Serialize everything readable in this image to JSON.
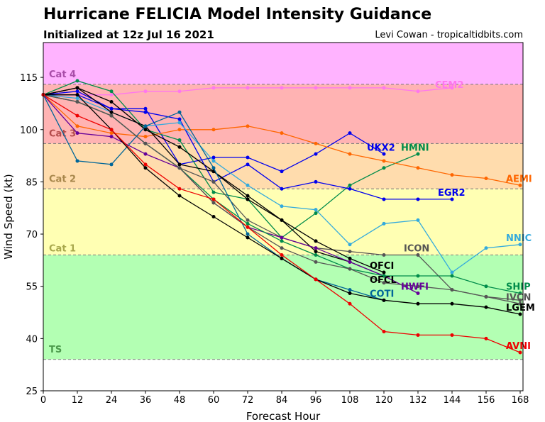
{
  "header": {
    "title": "Hurricane FELICIA Model Intensity Guidance",
    "subtitle": "Initialized at 12z Jul 16 2021",
    "credit": "Levi Cowan - tropicaltidbits.com"
  },
  "chart_data": {
    "type": "line",
    "xlabel": "Forecast Hour",
    "ylabel": "Wind Speed (kt)",
    "xlim": [
      0,
      169
    ],
    "ylim": [
      25,
      125
    ],
    "xticks": [
      0,
      12,
      24,
      36,
      48,
      60,
      72,
      84,
      96,
      108,
      120,
      132,
      144,
      156,
      168
    ],
    "yticks": [
      25,
      40,
      55,
      70,
      85,
      100,
      115
    ],
    "bands": [
      {
        "name": "",
        "from": 25,
        "to": 34,
        "color": "#ffffff"
      },
      {
        "name": "TS",
        "from": 34,
        "to": 64,
        "color": "#b3ffb3",
        "label_color": "#4c9a4c",
        "label_y": 37
      },
      {
        "name": "Cat 1",
        "from": 64,
        "to": 83,
        "color": "#ffffb3",
        "label_color": "#a8a84c",
        "label_y": 66
      },
      {
        "name": "Cat 2",
        "from": 83,
        "to": 96,
        "color": "#ffdcad",
        "label_color": "#a8874c",
        "label_y": 86
      },
      {
        "name": "Cat 3",
        "from": 96,
        "to": 113,
        "color": "#ffb3b3",
        "label_color": "#b34c4c",
        "label_y": 99
      },
      {
        "name": "Cat 4",
        "from": 113,
        "to": 125,
        "color": "#ffb3ff",
        "label_color": "#a84ca8",
        "label_y": 116
      }
    ],
    "series": [
      {
        "name": "CEM2",
        "color": "#ff77ee",
        "x": [
          0,
          12,
          24,
          36,
          48,
          60,
          72,
          84,
          96,
          108,
          120,
          132,
          144
        ],
        "y": [
          110,
          110,
          110,
          111,
          111,
          112,
          112,
          112,
          112,
          112,
          112,
          111,
          112
        ],
        "label_x": 138,
        "label_y": 113
      },
      {
        "name": "UKX2",
        "color": "#0000ee",
        "x": [
          0,
          12,
          24,
          36,
          48,
          60,
          72,
          84,
          96,
          108,
          120
        ],
        "y": [
          110,
          111,
          106,
          106,
          90,
          92,
          92,
          88,
          93,
          99,
          93
        ],
        "label_x": 114,
        "label_y": 95
      },
      {
        "name": "HMNI",
        "color": "#008c4a",
        "x": [
          0,
          12,
          24,
          36,
          48,
          60,
          72,
          84,
          96,
          108,
          120,
          132
        ],
        "y": [
          110,
          114,
          111,
          100,
          97,
          82,
          80,
          69,
          76,
          84,
          89,
          93
        ],
        "label_x": 126,
        "label_y": 95
      },
      {
        "name": "AEMI",
        "color": "#ff6600",
        "x": [
          0,
          12,
          24,
          36,
          48,
          60,
          72,
          84,
          96,
          108,
          120,
          132,
          144,
          156,
          168
        ],
        "y": [
          110,
          101,
          99,
          98,
          100,
          100,
          101,
          99,
          96,
          93,
          91,
          89,
          87,
          86,
          84
        ],
        "label_x": 163,
        "label_y": 86
      },
      {
        "name": "EGR2",
        "color": "#0000ee",
        "x": [
          0,
          12,
          24,
          36,
          48,
          60,
          72,
          84,
          96,
          108,
          120,
          132,
          144
        ],
        "y": [
          110,
          110,
          106,
          105,
          103,
          85,
          90,
          83,
          85,
          83,
          80,
          80,
          80
        ],
        "label_x": 139,
        "label_y": 82
      },
      {
        "name": "NNIC",
        "color": "#33aadd",
        "x": [
          0,
          12,
          24,
          36,
          48,
          60,
          72,
          84,
          96,
          108,
          120,
          132,
          144,
          156,
          168
        ],
        "y": [
          110,
          109,
          105,
          101,
          102,
          91,
          84,
          78,
          77,
          67,
          73,
          74,
          59,
          66,
          67
        ],
        "label_x": 163,
        "label_y": 69
      },
      {
        "name": "ICON",
        "color": "#555555",
        "x": [
          0,
          12,
          24,
          36,
          48,
          60,
          72,
          84,
          96,
          108,
          120,
          132,
          144,
          156,
          168
        ],
        "y": [
          110,
          108,
          104,
          96,
          89,
          85,
          74,
          69,
          66,
          65,
          64,
          64,
          54,
          52,
          51
        ],
        "label_x": 127,
        "label_y": 66
      },
      {
        "name": "OFCI",
        "color": "#000000",
        "x": [
          0,
          12,
          24,
          36,
          48,
          60,
          72,
          84,
          96,
          108,
          120
        ],
        "y": [
          110,
          112,
          105,
          101,
          90,
          88,
          81,
          74,
          68,
          63,
          59
        ],
        "label_x": 115,
        "label_y": 61
      },
      {
        "name": "OFCL",
        "color": "#000000",
        "x": [
          0,
          12,
          24,
          36,
          48,
          60,
          72,
          84,
          96,
          108,
          120
        ],
        "y": [
          110,
          112,
          108,
          100,
          95,
          88,
          80,
          74,
          65,
          62,
          58
        ],
        "label_x": 115,
        "label_y": 57
      },
      {
        "name": "HWFI",
        "color": "#660099",
        "x": [
          0,
          12,
          24,
          36,
          48,
          60,
          72,
          84,
          96,
          108,
          120,
          132
        ],
        "y": [
          110,
          99,
          98,
          93,
          89,
          79,
          72,
          69,
          66,
          62,
          58,
          53
        ],
        "label_x": 126,
        "label_y": 55
      },
      {
        "name": "SHIP",
        "color": "#008c4a",
        "x": [
          0,
          12,
          24,
          36,
          48,
          60,
          72,
          84,
          96,
          108,
          120,
          132,
          144,
          156,
          168
        ],
        "y": [
          110,
          108,
          104,
          96,
          89,
          80,
          73,
          68,
          64,
          60,
          58,
          58,
          58,
          55,
          53
        ],
        "label_x": 163,
        "label_y": 55
      },
      {
        "name": "IVCN",
        "color": "#555555",
        "x": [
          0,
          12,
          24,
          36,
          48,
          60,
          72,
          84,
          96,
          108,
          120,
          132,
          144,
          156,
          168
        ],
        "y": [
          110,
          108,
          104,
          96,
          89,
          79,
          72,
          66,
          62,
          60,
          56,
          55,
          54,
          52,
          50
        ],
        "label_x": 163,
        "label_y": 52
      },
      {
        "name": "COTI",
        "color": "#006699",
        "x": [
          0,
          12,
          24,
          36,
          48,
          60,
          72,
          84,
          96,
          108,
          120
        ],
        "y": [
          110,
          91,
          90,
          101,
          105,
          89,
          70,
          63,
          57,
          54,
          51
        ],
        "label_x": 115,
        "label_y": 53
      },
      {
        "name": "LGEM",
        "color": "#000000",
        "x": [
          0,
          12,
          24,
          36,
          48,
          60,
          72,
          84,
          96,
          108,
          120,
          132,
          144,
          156,
          168
        ],
        "y": [
          110,
          110,
          100,
          89,
          81,
          75,
          69,
          63,
          57,
          53,
          51,
          50,
          50,
          49,
          47
        ],
        "label_x": 163,
        "label_y": 49
      },
      {
        "name": "AVNI",
        "color": "#ee0000",
        "x": [
          0,
          12,
          24,
          36,
          48,
          60,
          72,
          84,
          96,
          108,
          120,
          132,
          144,
          156,
          168
        ],
        "y": [
          110,
          104,
          100,
          90,
          83,
          80,
          72,
          64,
          57,
          50,
          42,
          41,
          41,
          40,
          36
        ],
        "label_x": 163,
        "label_y": 38
      }
    ]
  }
}
